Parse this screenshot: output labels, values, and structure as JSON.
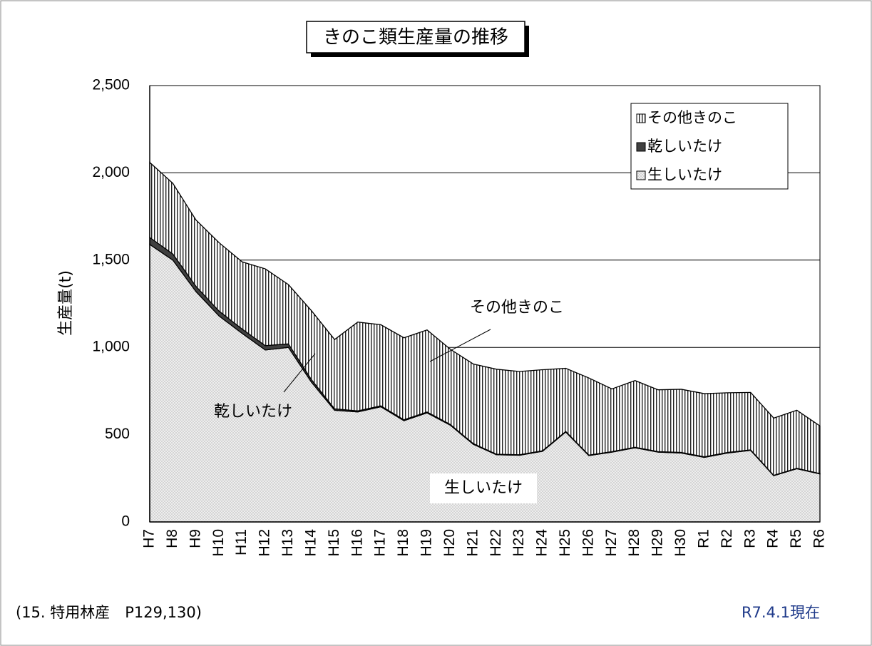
{
  "chart_data": {
    "type": "stacked-area",
    "title": "きのこ類生産量の推移",
    "y_label": "生産量(t)",
    "categories": [
      "H7",
      "H8",
      "H9",
      "H10",
      "H11",
      "H12",
      "H13",
      "H14",
      "H15",
      "H16",
      "H17",
      "H18",
      "H19",
      "H20",
      "H21",
      "H22",
      "H23",
      "H24",
      "H25",
      "H26",
      "H27",
      "H28",
      "H29",
      "H30",
      "R1",
      "R2",
      "R3",
      "R4",
      "R5",
      "R6"
    ],
    "series": [
      {
        "name": "生しいたけ",
        "color": "#d4d4d4",
        "values": [
          1590,
          1500,
          1320,
          1180,
          1080,
          985,
          1000,
          800,
          640,
          630,
          660,
          580,
          625,
          555,
          445,
          385,
          382,
          405,
          515,
          380,
          400,
          425,
          400,
          395,
          370,
          395,
          410,
          265,
          305,
          275
        ]
      },
      {
        "name": "乾しいたけ",
        "color": "#404040",
        "values": [
          40,
          35,
          30,
          28,
          25,
          25,
          20,
          15,
          8,
          6,
          5,
          5,
          5,
          4,
          4,
          3,
          3,
          3,
          3,
          3,
          3,
          3,
          3,
          3,
          3,
          3,
          3,
          2,
          2,
          2
        ]
      },
      {
        "name": "その他きのこ",
        "color": "#222222",
        "values": [
          430,
          405,
          380,
          392,
          385,
          440,
          340,
          395,
          397,
          509,
          465,
          470,
          470,
          431,
          456,
          487,
          477,
          464,
          362,
          442,
          359,
          382,
          354,
          362,
          362,
          342,
          329,
          328,
          333,
          273
        ]
      }
    ],
    "ylim": [
      0,
      2500
    ],
    "yticks": [
      0,
      500,
      {
        "value": 1000,
        "label": "1,000"
      },
      {
        "value": 1500,
        "label": "1,500"
      },
      {
        "value": 2000,
        "label": "2,000"
      },
      {
        "value": 2500,
        "label": "2,500"
      }
    ],
    "grid": true,
    "legend": "upper right",
    "annotations": [
      "その他きのこ",
      "乾しいたけ",
      "生しいたけ"
    ],
    "source": "(15. 特用林産　P129,130)",
    "date_note": "R7.4.1現在"
  }
}
